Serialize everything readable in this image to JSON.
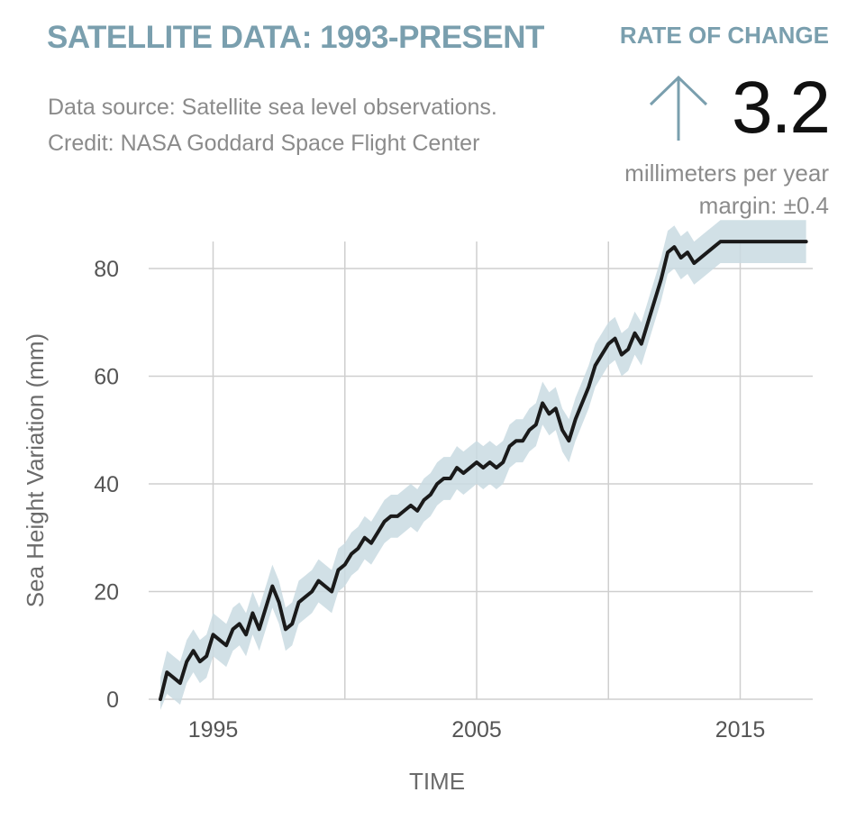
{
  "header": {
    "title": "SATELLITE DATA: 1993-PRESENT",
    "source_line1": "Data source: Satellite sea level observations.",
    "source_line2": "Credit: NASA Goddard Space Flight Center"
  },
  "rate": {
    "title": "RATE OF CHANGE",
    "value": "3.2",
    "unit": "millimeters per year",
    "margin": "margin: ±0.4",
    "arrow_icon": "arrow-up-icon",
    "accent_color": "#7a9fae"
  },
  "colors": {
    "line": "#1a1a1a",
    "band": "#c9dbe2",
    "grid": "#cfcfcf",
    "accent": "#7a9fae"
  },
  "chart_data": {
    "type": "line",
    "xlabel": "TIME",
    "ylabel": "Sea Height Variation (mm)",
    "xlim": [
      1993,
      2017.5
    ],
    "ylim": [
      0,
      85
    ],
    "x_ticks": [
      "1995",
      "2005",
      "2015"
    ],
    "y_ticks": [
      "0",
      "20",
      "40",
      "60",
      "80"
    ],
    "grid": true,
    "uncertainty_band_mm": 4,
    "series": [
      {
        "x": [
          1993.0,
          1993.25,
          1993.5,
          1993.75,
          1994.0,
          1994.25,
          1994.5,
          1994.75,
          1995.0,
          1995.25,
          1995.5,
          1995.75,
          1996.0,
          1996.25,
          1996.5,
          1996.75,
          1997.0,
          1997.25,
          1997.5,
          1997.75,
          1998.0,
          1998.25,
          1998.5,
          1998.75,
          1999.0,
          1999.25,
          1999.5,
          1999.75,
          2000.0,
          2000.25,
          2000.5,
          2000.75,
          2001.0,
          2001.25,
          2001.5,
          2001.75,
          2002.0,
          2002.25,
          2002.5,
          2002.75,
          2003.0,
          2003.25,
          2003.5,
          2003.75,
          2004.0,
          2004.25,
          2004.5,
          2004.75,
          2005.0,
          2005.25,
          2005.5,
          2005.75,
          2006.0,
          2006.25,
          2006.5,
          2006.75,
          2007.0,
          2007.25,
          2007.5,
          2007.75,
          2008.0,
          2008.25,
          2008.5,
          2008.75,
          2009.0,
          2009.25,
          2009.5,
          2009.75,
          2010.0,
          2010.25,
          2010.5,
          2010.75,
          2011.0,
          2011.25,
          2011.5,
          2011.75,
          2012.0,
          2012.25,
          2012.5,
          2012.75,
          2013.0,
          2013.25,
          2013.5,
          2013.75,
          2014.0,
          2014.25,
          2014.5,
          2014.75,
          2015.0,
          2015.25,
          2015.5,
          2015.75,
          2016.0,
          2016.25,
          2016.5,
          2016.75,
          2017.0,
          2017.25,
          2017.5
        ],
        "values": [
          0,
          5,
          4,
          3,
          7,
          9,
          7,
          8,
          12,
          11,
          10,
          13,
          14,
          12,
          16,
          13,
          17,
          21,
          18,
          13,
          14,
          18,
          19,
          20,
          22,
          21,
          20,
          24,
          25,
          27,
          28,
          30,
          29,
          31,
          33,
          34,
          34,
          35,
          36,
          35,
          37,
          38,
          40,
          41,
          41,
          43,
          42,
          43,
          44,
          43,
          44,
          43,
          44,
          47,
          48,
          48,
          50,
          51,
          55,
          53,
          54,
          50,
          48,
          52,
          55,
          58,
          62,
          64,
          66,
          67,
          64,
          65,
          68,
          66,
          70,
          74,
          78,
          83,
          84,
          82,
          83,
          81,
          82,
          83,
          84,
          85,
          85,
          85,
          85,
          85,
          85,
          85,
          85,
          85,
          85,
          85,
          85,
          85,
          85
        ]
      }
    ]
  }
}
